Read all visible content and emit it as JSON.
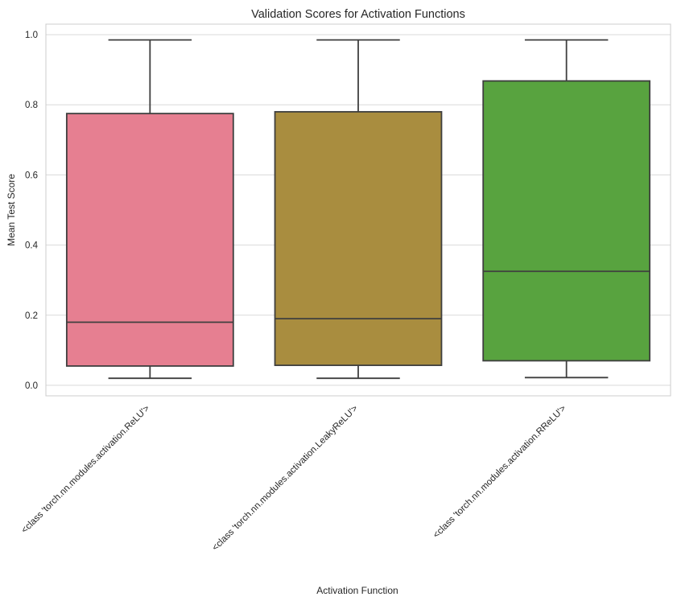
{
  "chart_data": {
    "type": "box",
    "title": "Validation Scores for Activation Functions",
    "xlabel": "Activation Function",
    "ylabel": "Mean Test Score",
    "ylim": [
      -0.03,
      1.03
    ],
    "yticks": [
      0.0,
      0.2,
      0.4,
      0.6,
      0.8,
      1.0
    ],
    "ytick_labels": [
      "0.0",
      "0.2",
      "0.4",
      "0.6",
      "0.8",
      "1.0"
    ],
    "grid": "horizontal",
    "categories": [
      "<class 'torch.nn.modules.activation.ReLU'>",
      "<class 'torch.nn.modules.activation.LeakyReLU'>",
      "<class 'torch.nn.modules.activation.RReLU'>"
    ],
    "boxes": [
      {
        "whisker_low": 0.02,
        "q1": 0.055,
        "median": 0.18,
        "q3": 0.775,
        "whisker_high": 0.985,
        "color": "#e67f91"
      },
      {
        "whisker_low": 0.02,
        "q1": 0.057,
        "median": 0.19,
        "q3": 0.78,
        "whisker_high": 0.985,
        "color": "#a98d3f"
      },
      {
        "whisker_low": 0.022,
        "q1": 0.07,
        "median": 0.325,
        "q3": 0.868,
        "whisker_high": 0.985,
        "color": "#58a33f"
      }
    ],
    "colors": {
      "grid": "#d9d9d9",
      "frame": "#cccccc",
      "box_edge": "#3f3f3f"
    }
  }
}
